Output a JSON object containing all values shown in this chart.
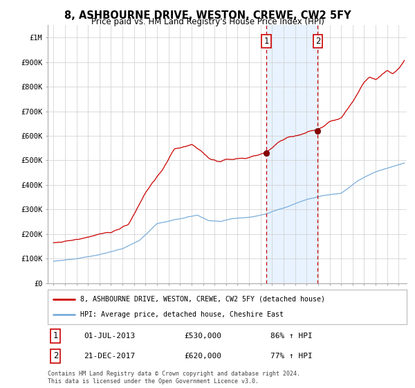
{
  "title": "8, ASHBOURNE DRIVE, WESTON, CREWE, CW2 5FY",
  "subtitle": "Price paid vs. HM Land Registry's House Price Index (HPI)",
  "legend_house": "8, ASHBOURNE DRIVE, WESTON, CREWE, CW2 5FY (detached house)",
  "legend_hpi": "HPI: Average price, detached house, Cheshire East",
  "annotation1_date": "01-JUL-2013",
  "annotation1_price": "£530,000",
  "annotation1_hpi": "86% ↑ HPI",
  "annotation1_year": 2013.5,
  "annotation1_value": 530000,
  "annotation2_date": "21-DEC-2017",
  "annotation2_price": "£620,000",
  "annotation2_hpi": "77% ↑ HPI",
  "annotation2_year": 2017.97,
  "annotation2_value": 620000,
  "house_color": "#cc0000",
  "hpi_color": "#7aadda",
  "background_color": "#ffffff",
  "grid_color": "#cccccc",
  "shade_color": "#ddeeff",
  "ylim": [
    0,
    1050000
  ],
  "yticks": [
    0,
    100000,
    200000,
    300000,
    400000,
    500000,
    600000,
    700000,
    800000,
    900000,
    1000000
  ],
  "ytick_labels": [
    "£0",
    "£100K",
    "£200K",
    "£300K",
    "£400K",
    "£500K",
    "£600K",
    "£700K",
    "£800K",
    "£900K",
    "£1M"
  ],
  "copyright": "Contains HM Land Registry data © Crown copyright and database right 2024.\nThis data is licensed under the Open Government Licence v3.0.",
  "xlim_start": 1994.5,
  "xlim_end": 2025.7
}
